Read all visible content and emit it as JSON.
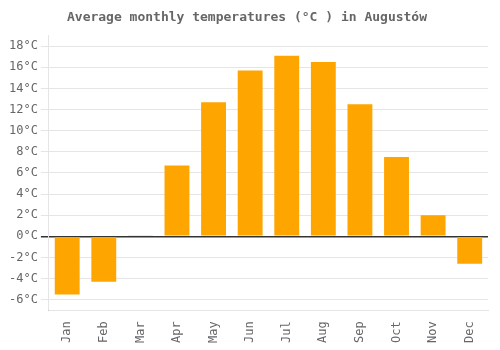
{
  "chart_data": {
    "type": "bar",
    "title": "Average monthly temperatures (°C ) in Augustów",
    "categories": [
      "Jan",
      "Feb",
      "Mar",
      "Apr",
      "May",
      "Jun",
      "Jul",
      "Aug",
      "Sep",
      "Oct",
      "Nov",
      "Dec"
    ],
    "values": [
      -5.5,
      -4.3,
      0.1,
      6.7,
      12.7,
      15.7,
      17.1,
      16.5,
      12.5,
      7.5,
      2.0,
      -2.6
    ],
    "color": "#FFA500",
    "ylim": [
      -7,
      19
    ],
    "yticks": [
      {
        "value": -6,
        "label": "-6°C"
      },
      {
        "value": -4,
        "label": "-4°C"
      },
      {
        "value": -2,
        "label": "-2°C"
      },
      {
        "value": 0,
        "label": "0°C"
      },
      {
        "value": 2,
        "label": "2°C"
      },
      {
        "value": 4,
        "label": "4°C"
      },
      {
        "value": 6,
        "label": "6°C"
      },
      {
        "value": 8,
        "label": "8°C"
      },
      {
        "value": 10,
        "label": "10°C"
      },
      {
        "value": 12,
        "label": "12°C"
      },
      {
        "value": 14,
        "label": "14°C"
      },
      {
        "value": 16,
        "label": "16°C"
      },
      {
        "value": 18,
        "label": "18°C"
      }
    ],
    "grid": true
  }
}
